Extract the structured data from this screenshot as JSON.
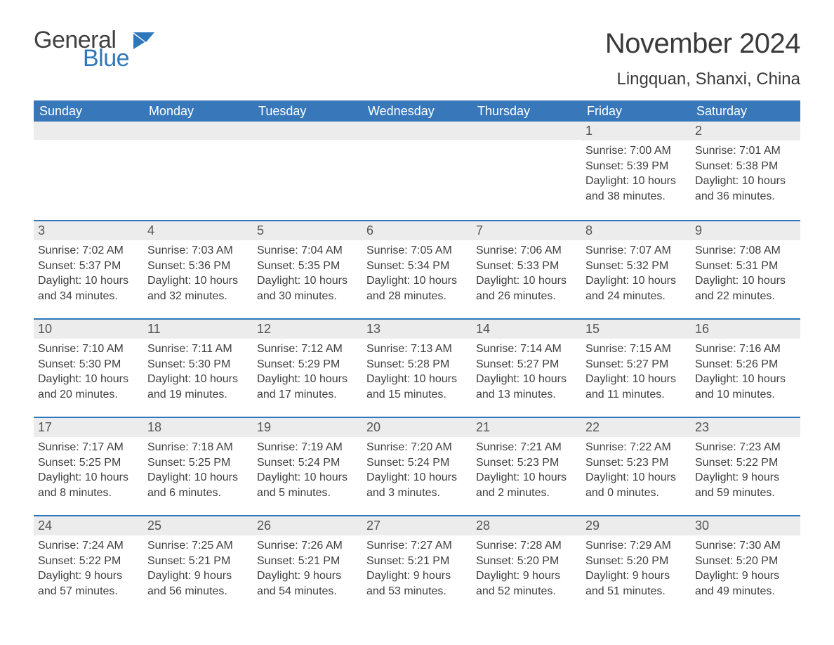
{
  "brand": {
    "word1": "General",
    "word2": "Blue",
    "word2_color": "#2f77bb"
  },
  "title": "November 2024",
  "location": "Lingquan, Shanxi, China",
  "colors": {
    "header_bg": "#3878ba",
    "header_text": "#ffffff",
    "rule": "#2f77bb",
    "daynum_bg": "#ececec",
    "body_text": "#404040"
  },
  "weekdays": [
    "Sunday",
    "Monday",
    "Tuesday",
    "Wednesday",
    "Thursday",
    "Friday",
    "Saturday"
  ],
  "weeks": [
    [
      null,
      null,
      null,
      null,
      null,
      {
        "n": "1",
        "sr": "Sunrise: 7:00 AM",
        "ss": "Sunset: 5:39 PM",
        "dl": "Daylight: 10 hours and 38 minutes."
      },
      {
        "n": "2",
        "sr": "Sunrise: 7:01 AM",
        "ss": "Sunset: 5:38 PM",
        "dl": "Daylight: 10 hours and 36 minutes."
      }
    ],
    [
      {
        "n": "3",
        "sr": "Sunrise: 7:02 AM",
        "ss": "Sunset: 5:37 PM",
        "dl": "Daylight: 10 hours and 34 minutes."
      },
      {
        "n": "4",
        "sr": "Sunrise: 7:03 AM",
        "ss": "Sunset: 5:36 PM",
        "dl": "Daylight: 10 hours and 32 minutes."
      },
      {
        "n": "5",
        "sr": "Sunrise: 7:04 AM",
        "ss": "Sunset: 5:35 PM",
        "dl": "Daylight: 10 hours and 30 minutes."
      },
      {
        "n": "6",
        "sr": "Sunrise: 7:05 AM",
        "ss": "Sunset: 5:34 PM",
        "dl": "Daylight: 10 hours and 28 minutes."
      },
      {
        "n": "7",
        "sr": "Sunrise: 7:06 AM",
        "ss": "Sunset: 5:33 PM",
        "dl": "Daylight: 10 hours and 26 minutes."
      },
      {
        "n": "8",
        "sr": "Sunrise: 7:07 AM",
        "ss": "Sunset: 5:32 PM",
        "dl": "Daylight: 10 hours and 24 minutes."
      },
      {
        "n": "9",
        "sr": "Sunrise: 7:08 AM",
        "ss": "Sunset: 5:31 PM",
        "dl": "Daylight: 10 hours and 22 minutes."
      }
    ],
    [
      {
        "n": "10",
        "sr": "Sunrise: 7:10 AM",
        "ss": "Sunset: 5:30 PM",
        "dl": "Daylight: 10 hours and 20 minutes."
      },
      {
        "n": "11",
        "sr": "Sunrise: 7:11 AM",
        "ss": "Sunset: 5:30 PM",
        "dl": "Daylight: 10 hours and 19 minutes."
      },
      {
        "n": "12",
        "sr": "Sunrise: 7:12 AM",
        "ss": "Sunset: 5:29 PM",
        "dl": "Daylight: 10 hours and 17 minutes."
      },
      {
        "n": "13",
        "sr": "Sunrise: 7:13 AM",
        "ss": "Sunset: 5:28 PM",
        "dl": "Daylight: 10 hours and 15 minutes."
      },
      {
        "n": "14",
        "sr": "Sunrise: 7:14 AM",
        "ss": "Sunset: 5:27 PM",
        "dl": "Daylight: 10 hours and 13 minutes."
      },
      {
        "n": "15",
        "sr": "Sunrise: 7:15 AM",
        "ss": "Sunset: 5:27 PM",
        "dl": "Daylight: 10 hours and 11 minutes."
      },
      {
        "n": "16",
        "sr": "Sunrise: 7:16 AM",
        "ss": "Sunset: 5:26 PM",
        "dl": "Daylight: 10 hours and 10 minutes."
      }
    ],
    [
      {
        "n": "17",
        "sr": "Sunrise: 7:17 AM",
        "ss": "Sunset: 5:25 PM",
        "dl": "Daylight: 10 hours and 8 minutes."
      },
      {
        "n": "18",
        "sr": "Sunrise: 7:18 AM",
        "ss": "Sunset: 5:25 PM",
        "dl": "Daylight: 10 hours and 6 minutes."
      },
      {
        "n": "19",
        "sr": "Sunrise: 7:19 AM",
        "ss": "Sunset: 5:24 PM",
        "dl": "Daylight: 10 hours and 5 minutes."
      },
      {
        "n": "20",
        "sr": "Sunrise: 7:20 AM",
        "ss": "Sunset: 5:24 PM",
        "dl": "Daylight: 10 hours and 3 minutes."
      },
      {
        "n": "21",
        "sr": "Sunrise: 7:21 AM",
        "ss": "Sunset: 5:23 PM",
        "dl": "Daylight: 10 hours and 2 minutes."
      },
      {
        "n": "22",
        "sr": "Sunrise: 7:22 AM",
        "ss": "Sunset: 5:23 PM",
        "dl": "Daylight: 10 hours and 0 minutes."
      },
      {
        "n": "23",
        "sr": "Sunrise: 7:23 AM",
        "ss": "Sunset: 5:22 PM",
        "dl": "Daylight: 9 hours and 59 minutes."
      }
    ],
    [
      {
        "n": "24",
        "sr": "Sunrise: 7:24 AM",
        "ss": "Sunset: 5:22 PM",
        "dl": "Daylight: 9 hours and 57 minutes."
      },
      {
        "n": "25",
        "sr": "Sunrise: 7:25 AM",
        "ss": "Sunset: 5:21 PM",
        "dl": "Daylight: 9 hours and 56 minutes."
      },
      {
        "n": "26",
        "sr": "Sunrise: 7:26 AM",
        "ss": "Sunset: 5:21 PM",
        "dl": "Daylight: 9 hours and 54 minutes."
      },
      {
        "n": "27",
        "sr": "Sunrise: 7:27 AM",
        "ss": "Sunset: 5:21 PM",
        "dl": "Daylight: 9 hours and 53 minutes."
      },
      {
        "n": "28",
        "sr": "Sunrise: 7:28 AM",
        "ss": "Sunset: 5:20 PM",
        "dl": "Daylight: 9 hours and 52 minutes."
      },
      {
        "n": "29",
        "sr": "Sunrise: 7:29 AM",
        "ss": "Sunset: 5:20 PM",
        "dl": "Daylight: 9 hours and 51 minutes."
      },
      {
        "n": "30",
        "sr": "Sunrise: 7:30 AM",
        "ss": "Sunset: 5:20 PM",
        "dl": "Daylight: 9 hours and 49 minutes."
      }
    ]
  ]
}
